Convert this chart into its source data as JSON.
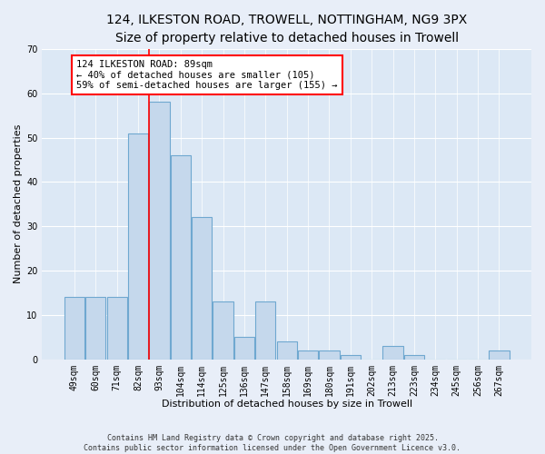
{
  "title": "124, ILKESTON ROAD, TROWELL, NOTTINGHAM, NG9 3PX",
  "subtitle": "Size of property relative to detached houses in Trowell",
  "xlabel": "Distribution of detached houses by size in Trowell",
  "ylabel": "Number of detached properties",
  "categories": [
    "49sqm",
    "60sqm",
    "71sqm",
    "82sqm",
    "93sqm",
    "104sqm",
    "114sqm",
    "125sqm",
    "136sqm",
    "147sqm",
    "158sqm",
    "169sqm",
    "180sqm",
    "191sqm",
    "202sqm",
    "213sqm",
    "223sqm",
    "234sqm",
    "245sqm",
    "256sqm",
    "267sqm"
  ],
  "values": [
    14,
    14,
    14,
    51,
    58,
    46,
    32,
    13,
    5,
    13,
    4,
    2,
    2,
    1,
    0,
    3,
    1,
    0,
    0,
    0,
    2
  ],
  "bar_color": "#c5d8ec",
  "bar_edge_color": "#6fa8d0",
  "ylim": [
    0,
    70
  ],
  "yticks": [
    0,
    10,
    20,
    30,
    40,
    50,
    60,
    70
  ],
  "red_line_x": 3.5,
  "annotation_line1": "124 ILKESTON ROAD: 89sqm",
  "annotation_line2": "← 40% of detached houses are smaller (105)",
  "annotation_line3": "59% of semi-detached houses are larger (155) →",
  "footer_line1": "Contains HM Land Registry data © Crown copyright and database right 2025.",
  "footer_line2": "Contains public sector information licensed under the Open Government Licence v3.0.",
  "bg_color": "#e8eef8",
  "plot_bg_color": "#dce8f5",
  "grid_color": "#ffffff",
  "title_fontsize": 10,
  "subtitle_fontsize": 9,
  "tick_fontsize": 7,
  "ylabel_fontsize": 8,
  "xlabel_fontsize": 8,
  "footer_fontsize": 6
}
